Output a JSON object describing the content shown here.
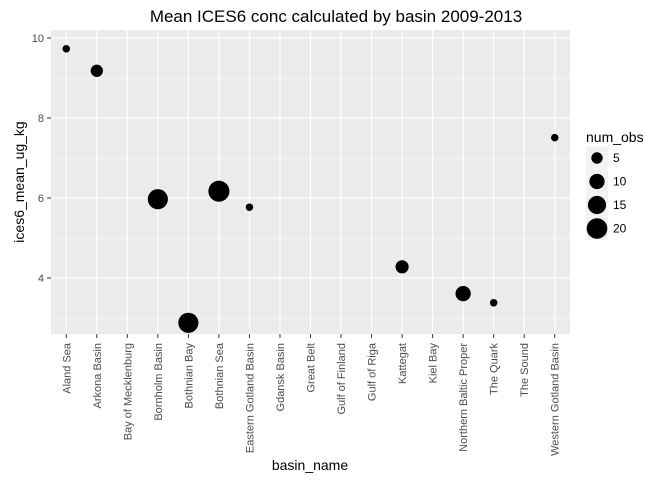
{
  "chart_data": {
    "type": "scatter",
    "title": "Mean ICES6 conc calculated by basin 2009-2013",
    "xlabel": "basin_name",
    "ylabel": "ices6_mean_ug_kg",
    "categories": [
      "Aland Sea",
      "Arkona Basin",
      "Bay of Mecklenburg",
      "Bornholm Basin",
      "Bothnian Bay",
      "Bothnian Sea",
      "Eastern Gotland Basin",
      "Gdansk Basin",
      "Great Belt",
      "Gulf of Finland",
      "Gulf of Riga",
      "Kattegat",
      "Kiel Bay",
      "Northern Baltic Proper",
      "The Quark",
      "The Sound",
      "Western Gotland Basin"
    ],
    "points": [
      {
        "x": "Aland Sea",
        "y": 9.73,
        "size": 2
      },
      {
        "x": "Arkona Basin",
        "y": 9.18,
        "size": 6
      },
      {
        "x": "Bornholm Basin",
        "y": 5.97,
        "size": 19
      },
      {
        "x": "Bothnian Bay",
        "y": 2.88,
        "size": 19
      },
      {
        "x": "Bothnian Sea",
        "y": 6.17,
        "size": 21
      },
      {
        "x": "Eastern Gotland Basin",
        "y": 5.77,
        "size": 2
      },
      {
        "x": "Kattegat",
        "y": 4.28,
        "size": 7
      },
      {
        "x": "Northern Baltic Proper",
        "y": 3.61,
        "size": 10
      },
      {
        "x": "The Quark",
        "y": 3.38,
        "size": 2
      },
      {
        "x": "Western Gotland Basin",
        "y": 7.51,
        "size": 2
      }
    ],
    "y_ticks": [
      4,
      6,
      8,
      10
    ],
    "y_tick_labels": [
      "4",
      "6",
      "8",
      "10"
    ],
    "ylim": [
      2.6,
      10.2
    ],
    "grid": true,
    "legend": {
      "title": "num_obs",
      "placement": "right",
      "entries": [
        {
          "label": "5",
          "value": 5
        },
        {
          "label": "10",
          "value": 10
        },
        {
          "label": "15",
          "value": 15
        },
        {
          "label": "20",
          "value": 20
        }
      ]
    },
    "colors": {
      "panel": "#ebebeb",
      "grid": "#ffffff",
      "point": "#000000"
    }
  }
}
